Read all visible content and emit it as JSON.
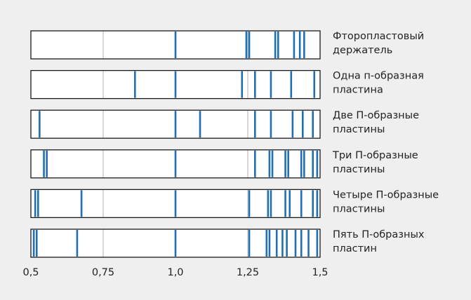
{
  "chart_data": {
    "type": "strip",
    "xlim": [
      0.5,
      1.5
    ],
    "ticks": [
      0.5,
      0.75,
      1.0,
      1.25,
      1.5
    ],
    "tick_labels": [
      "0,5",
      "0,75",
      "1,0",
      "1,25",
      "1,5"
    ],
    "reference_lines": [
      0.75,
      1.25
    ],
    "line_color": "#1f6fb2",
    "reference_color": "#c8c8c8",
    "rows": [
      {
        "label_lines": [
          "Фторопластовый",
          "держатель"
        ],
        "values": [
          1.0,
          1.245,
          1.255,
          1.345,
          1.355,
          1.41,
          1.43,
          1.445
        ]
      },
      {
        "label_lines": [
          "Одна п-образная",
          "пластина"
        ],
        "values": [
          0.86,
          1.0,
          1.23,
          1.275,
          1.33,
          1.4,
          1.48
        ]
      },
      {
        "label_lines": [
          "Две П-образные",
          "пластины"
        ],
        "values": [
          0.53,
          1.0,
          1.085,
          1.275,
          1.33,
          1.405,
          1.44,
          1.475
        ]
      },
      {
        "label_lines": [
          "Три П-образные",
          "пластины"
        ],
        "values": [
          0.545,
          0.555,
          1.0,
          1.275,
          1.325,
          1.335,
          1.38,
          1.39,
          1.435,
          1.445,
          1.475,
          1.49
        ]
      },
      {
        "label_lines": [
          "Четыре П-образные",
          "пластины"
        ],
        "values": [
          0.515,
          0.525,
          0.675,
          1.0,
          1.255,
          1.32,
          1.33,
          1.38,
          1.395,
          1.435,
          1.475,
          1.49
        ]
      },
      {
        "label_lines": [
          "Пять П-образных",
          "пластин"
        ],
        "values": [
          0.51,
          0.52,
          0.66,
          1.0,
          1.255,
          1.315,
          1.325,
          1.35,
          1.37,
          1.385,
          1.415,
          1.435,
          1.46,
          1.49
        ]
      }
    ]
  }
}
